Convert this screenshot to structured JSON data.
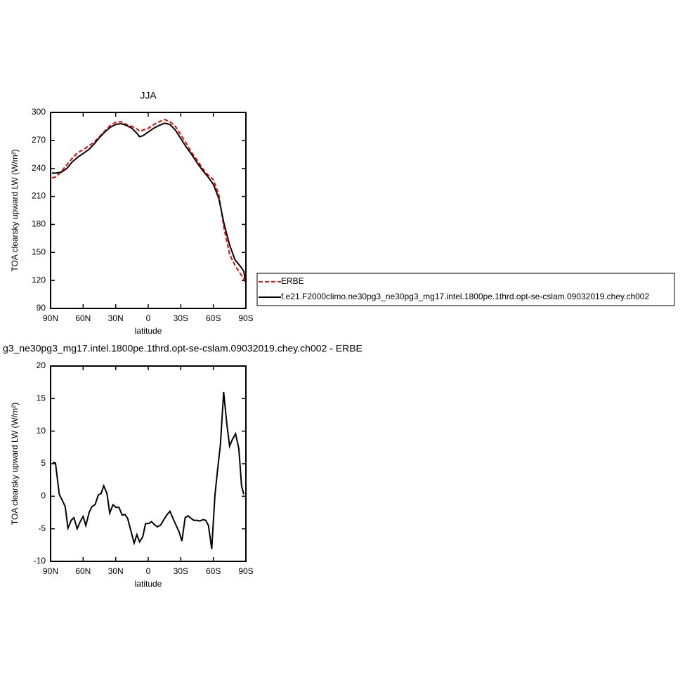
{
  "chart_data": [
    {
      "type": "line",
      "title": "JJA",
      "xlabel": "latitude",
      "ylabel": "TOA clearsky upward LW (W/m²)",
      "xlim": [
        90,
        -90
      ],
      "xticks": [
        {
          "value": 90,
          "label": "90N"
        },
        {
          "value": 60,
          "label": "60N"
        },
        {
          "value": 30,
          "label": "30N"
        },
        0,
        {
          "value": -30,
          "label": "30S"
        },
        {
          "value": -60,
          "label": "60S"
        },
        {
          "value": -90,
          "label": "90S"
        }
      ],
      "ylim": [
        90,
        300
      ],
      "yticks": [
        90,
        120,
        150,
        180,
        210,
        240,
        270,
        300
      ],
      "legend": "right",
      "x": [
        88.75,
        85,
        80,
        75,
        70,
        65,
        60,
        55,
        50,
        45,
        40,
        35,
        30,
        25,
        20,
        15,
        10,
        8,
        5,
        0,
        -5,
        -10,
        -15,
        -20,
        -25,
        -30,
        -35,
        -40,
        -45,
        -50,
        -55,
        -60,
        -65,
        -70,
        -75,
        -80,
        -85,
        -88,
        -90
      ],
      "series": [
        {
          "name": "ERBE",
          "color": "#ff0000",
          "dash": "dashed",
          "values": [
            230,
            231,
            237,
            244,
            251,
            257,
            260,
            264,
            268,
            274,
            280,
            286,
            289.5,
            290,
            287,
            285,
            282,
            280,
            281,
            283,
            287,
            290,
            292.5,
            290,
            285,
            276,
            267,
            257,
            249,
            240,
            233,
            228,
            212,
            175,
            148,
            136,
            127,
            122,
            117
          ]
        },
        {
          "name": "f.e21.F2000climo.ne30pg3_ne30pg3_mg17.intel.1800pe.1thrd.opt-se-cslam.09032019.chey.ch002",
          "color": "#000000",
          "dash": "solid",
          "values": [
            235,
            235,
            236,
            240,
            247,
            252,
            256,
            260,
            266,
            273,
            279,
            284,
            287,
            288,
            286,
            283,
            277,
            274,
            275,
            279,
            283,
            286,
            288.5,
            287,
            281,
            272,
            263,
            255,
            246,
            238,
            231,
            223,
            208,
            180,
            158,
            142,
            135,
            130,
            117
          ]
        }
      ]
    },
    {
      "type": "line",
      "title": "g3_ne30pg3_mg17.intel.1800pe.1thrd.opt-se-cslam.09032019.chey.ch002 - ERBE",
      "xlabel": "latitude",
      "ylabel": "TOA clearsky upward LW (W/m²)",
      "xlim": [
        90,
        -90
      ],
      "xticks": [
        {
          "value": 90,
          "label": "90N"
        },
        {
          "value": 60,
          "label": "60N"
        },
        {
          "value": 30,
          "label": "30N"
        },
        0,
        {
          "value": -30,
          "label": "30S"
        },
        {
          "value": -60,
          "label": "60S"
        },
        {
          "value": -90,
          "label": "90S"
        }
      ],
      "ylim": [
        -10,
        20
      ],
      "yticks": [
        -10,
        -5,
        0,
        5,
        10,
        15,
        20
      ],
      "x": [
        88,
        85.5,
        82,
        79,
        76.5,
        74,
        71,
        68.5,
        65.5,
        63,
        60,
        57.5,
        54.5,
        52,
        49,
        46,
        43.5,
        41,
        38,
        35.5,
        32.5,
        30,
        27,
        24,
        21.5,
        19,
        16,
        13,
        10.5,
        8,
        5,
        2.5,
        -0.5,
        -3,
        -6,
        -8.5,
        -11.5,
        -14,
        -17,
        -20,
        -22.5,
        -25.5,
        -28.5,
        -31,
        -34,
        -36.5,
        -39.5,
        -42,
        -45,
        -47.5,
        -50.5,
        -53,
        -55.5,
        -58.5,
        -61.5,
        -64,
        -66.5,
        -69.5,
        -72.5,
        -75,
        -77.5,
        -80.5,
        -83.5,
        -86,
        -88
      ],
      "series": [
        {
          "color": "#000000",
          "dash": "solid",
          "values": [
            5.2,
            5.1,
            0.3,
            -0.7,
            -1.6,
            -4.9,
            -3.7,
            -3.3,
            -5.0,
            -4.0,
            -3.1,
            -4.5,
            -2.5,
            -1.6,
            -1.3,
            0.2,
            0.4,
            1.6,
            0.4,
            -2.6,
            -1.3,
            -1.7,
            -1.7,
            -2.9,
            -2.8,
            -3.4,
            -5.3,
            -7.2,
            -5.9,
            -7.0,
            -6.2,
            -4.2,
            -4.2,
            -3.9,
            -4.4,
            -4.7,
            -4.4,
            -3.7,
            -2.9,
            -2.3,
            -3.3,
            -4.4,
            -5.5,
            -6.9,
            -3.3,
            -3.0,
            -3.4,
            -3.7,
            -3.7,
            -3.8,
            -3.6,
            -3.7,
            -4.5,
            -8.1,
            0.2,
            4.2,
            7.9,
            16.0,
            11.0,
            7.7,
            8.7,
            9.6,
            7.3,
            1.6,
            0.3
          ]
        }
      ]
    }
  ]
}
